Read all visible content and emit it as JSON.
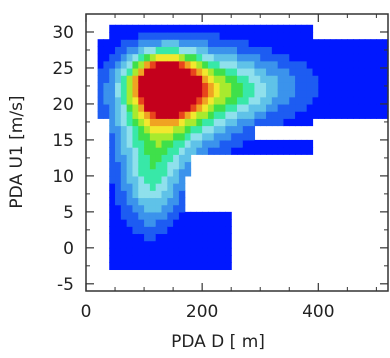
{
  "chart_data": {
    "type": "heatmap",
    "title": "",
    "xlabel": "PDA D [ m]",
    "ylabel": "PDA U1 [m/s]",
    "xlim": [
      0,
      520
    ],
    "ylim": [
      -6,
      32.5
    ],
    "x_ticks": [
      "0",
      "200",
      "400"
    ],
    "y_ticks": [
      "-5",
      "0",
      "5",
      "10",
      "15",
      "20",
      "25",
      "30"
    ],
    "grid": false,
    "legend": "none",
    "colormap": [
      "#0018ff",
      "#1d5cf2",
      "#3b93ec",
      "#5fc2e8",
      "#8fe0ec",
      "#38e8a8",
      "#3fe04a",
      "#a8ea2e",
      "#f2e82e",
      "#f0a322",
      "#e8451c",
      "#c4001c"
    ],
    "clusters": [
      {
        "region": "main",
        "x_range": [
          40,
          390
        ],
        "y_range": [
          -3,
          31
        ],
        "peak": {
          "x": 140,
          "y": 23
        }
      },
      {
        "region": "upper-right",
        "x_range": [
          390,
          520
        ],
        "y_range": [
          18,
          29
        ]
      }
    ]
  }
}
